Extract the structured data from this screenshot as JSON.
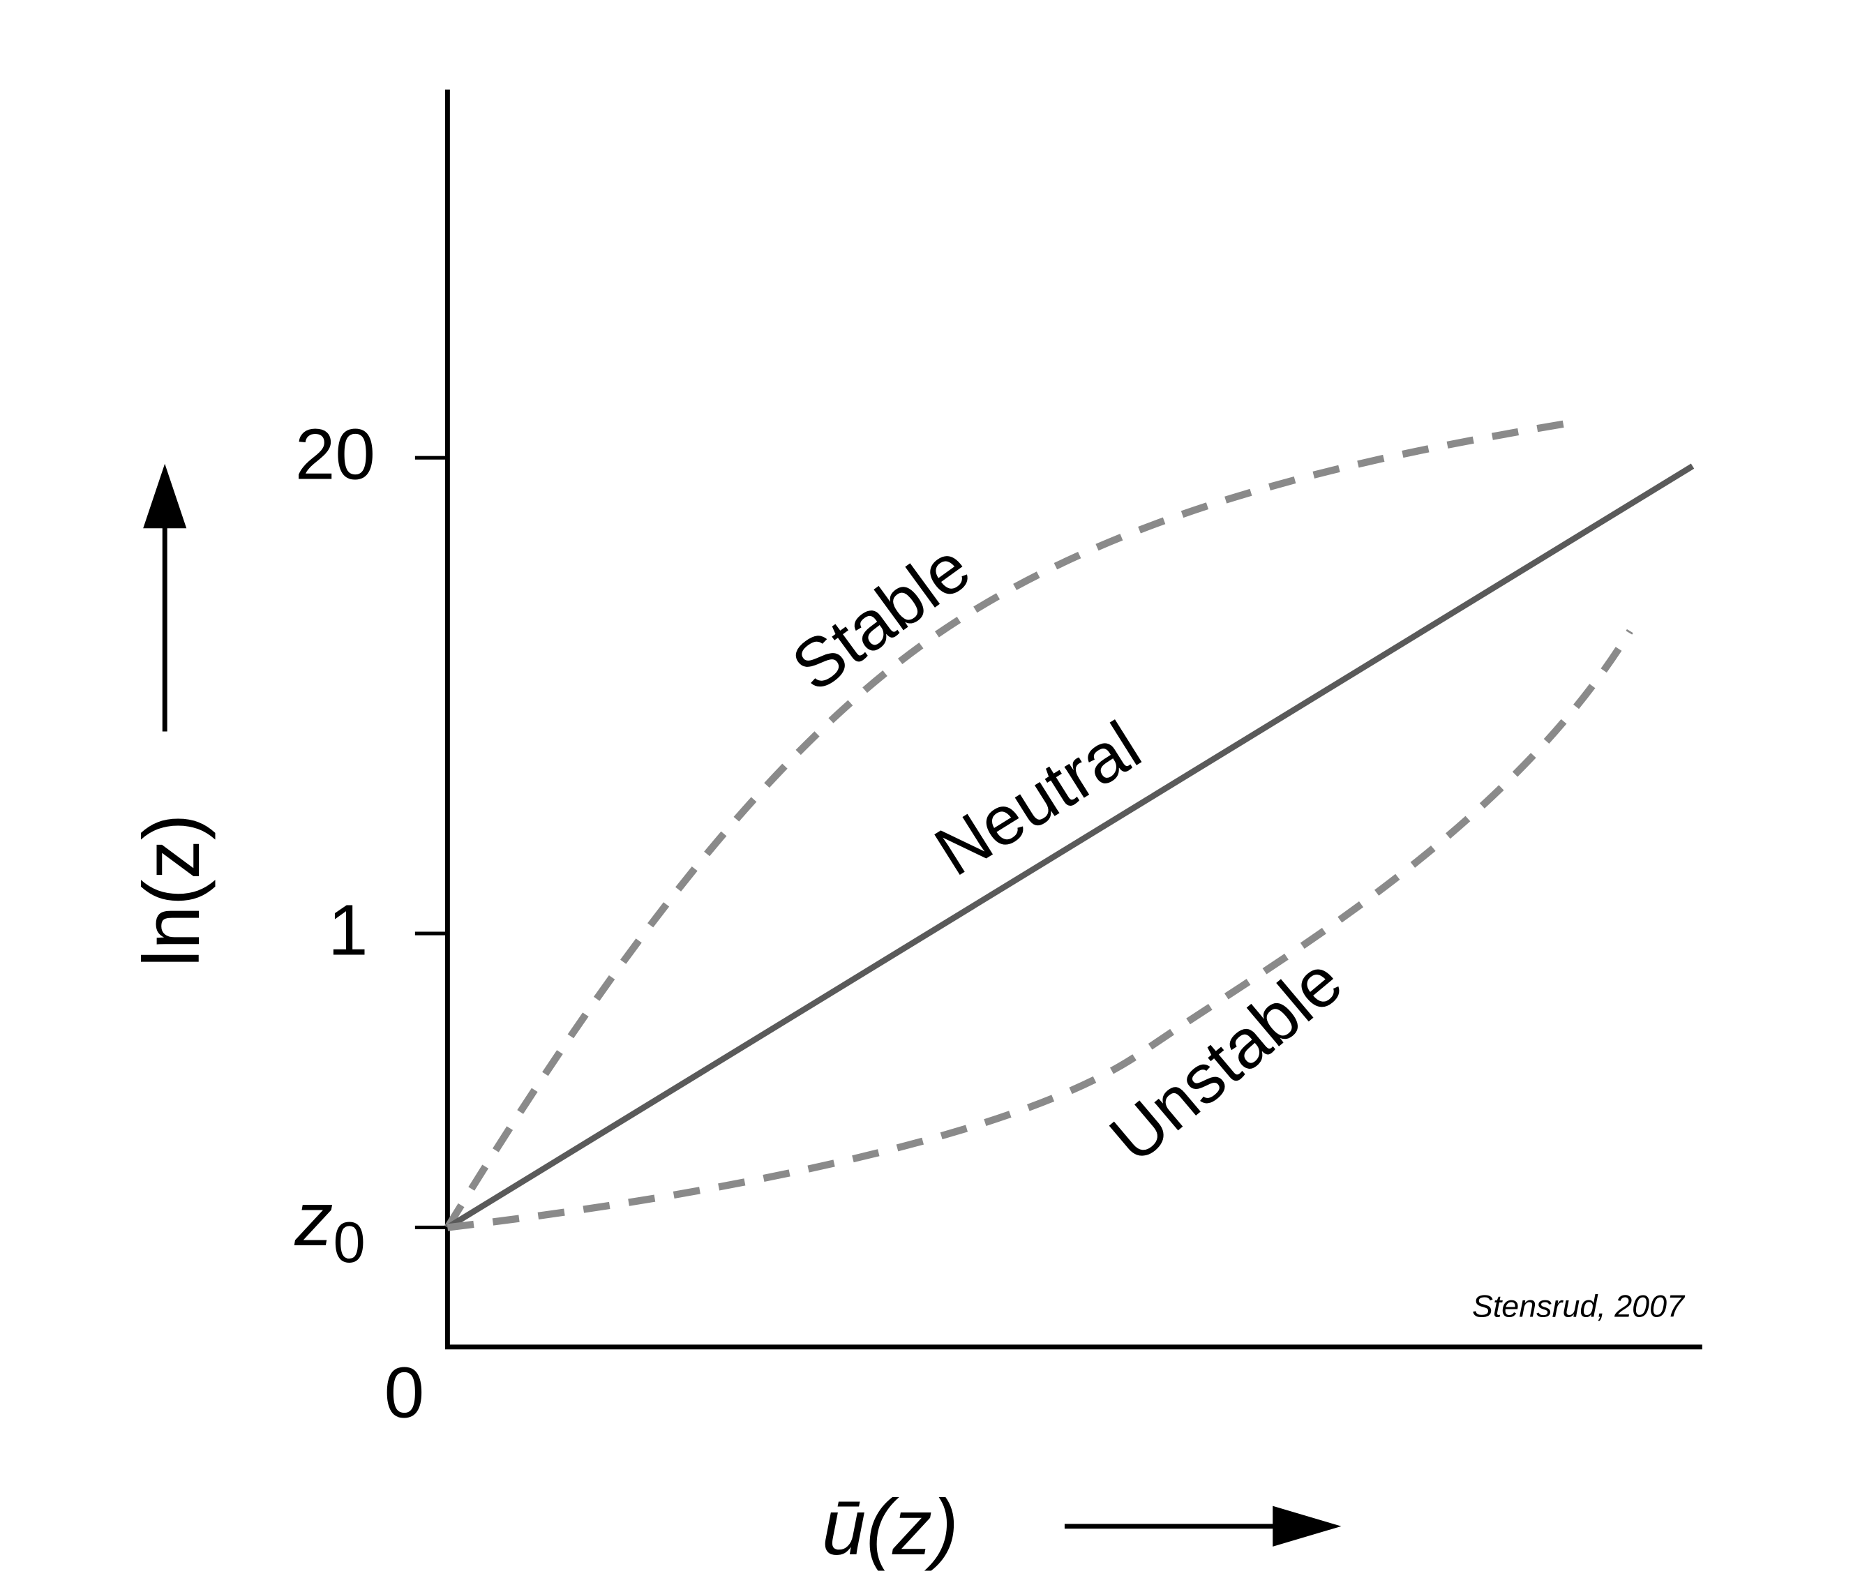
{
  "y_axis": {
    "label": "ln(z)",
    "ticks": [
      "20",
      "1"
    ],
    "z0": {
      "base": "z",
      "sub": "0"
    }
  },
  "x_axis": {
    "label": "ū(z)",
    "origin": "0"
  },
  "curves": [
    "Stable",
    "Neutral",
    "Unstable"
  ],
  "credit": "Stensrud, 2007"
}
